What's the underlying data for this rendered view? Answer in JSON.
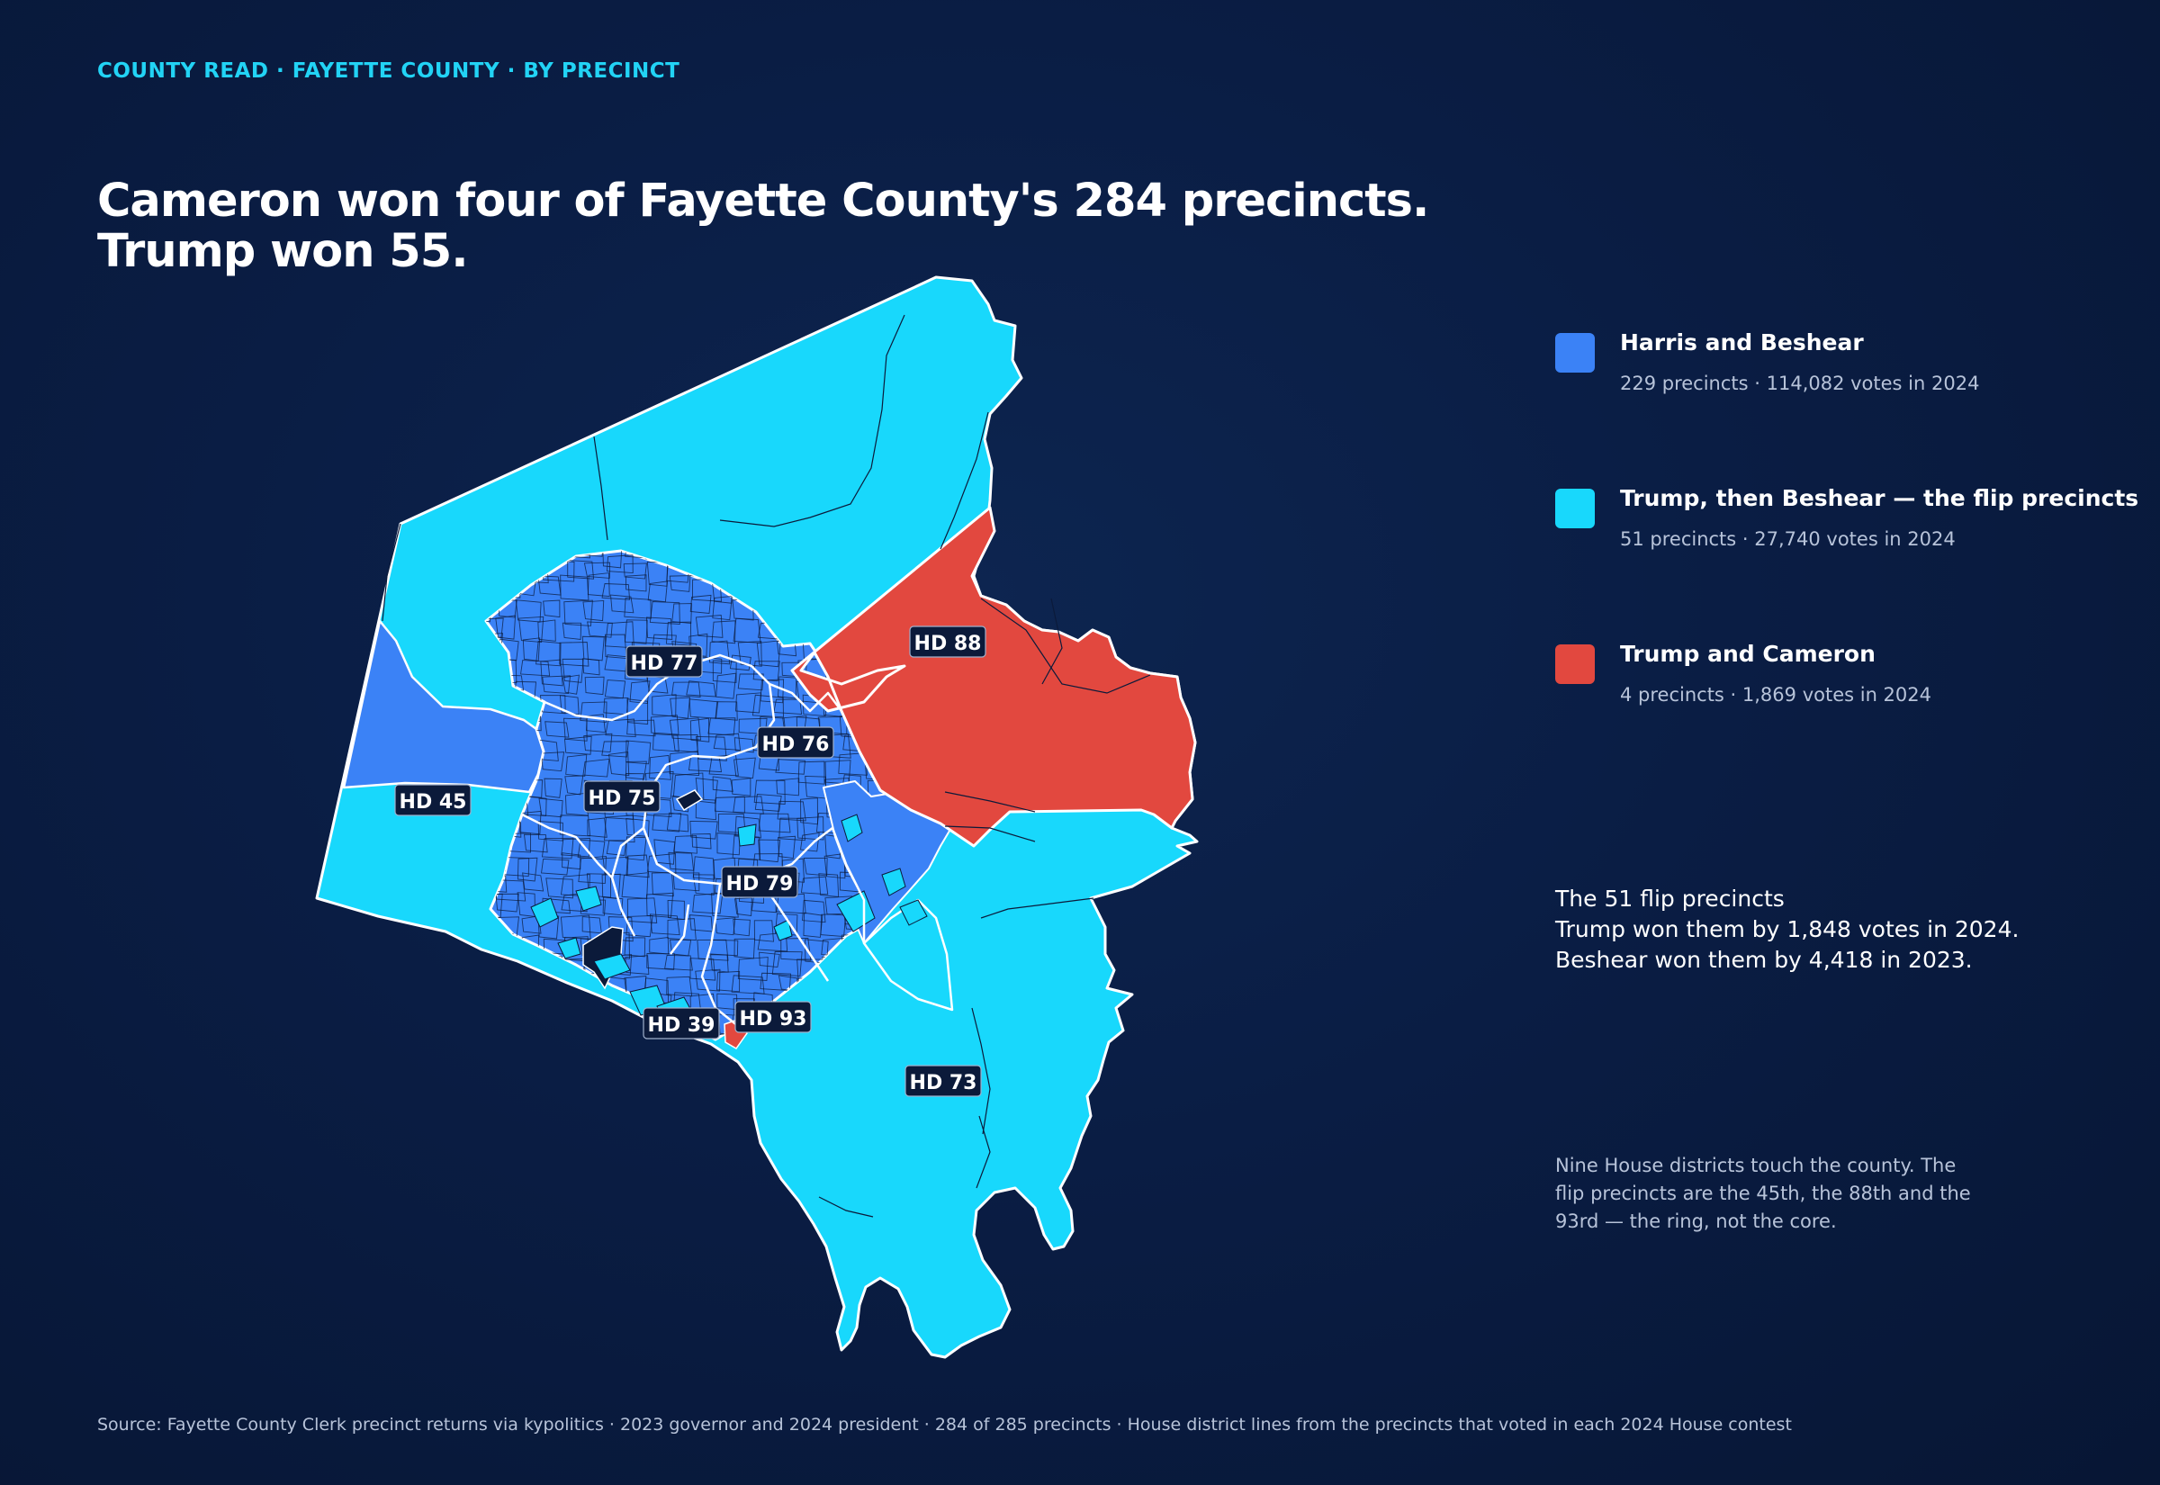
{
  "kicker": "COUNTY READ · FAYETTE COUNTY · BY PRECINCT",
  "headline": {
    "line1": "Cameron won four of Fayette County's 284 precincts.",
    "line2": "Trump won 55."
  },
  "colors": {
    "harris_beshear": "#3b82f6",
    "trump_beshear": "#18d8fc",
    "trump_cameron": "#e2483f",
    "no_data": "#0b1a3a",
    "background": "#0a1d44",
    "accent": "#22d3f5"
  },
  "legend": [
    {
      "label": "Harris and Beshear",
      "sub": "229 precincts · 114,082 votes in 2024",
      "color": "#3b82f6"
    },
    {
      "label": "Trump, then Beshear — the flip precincts",
      "sub": "51 precincts · 27,740 votes in 2024",
      "color": "#18d8fc"
    },
    {
      "label": "Trump and Cameron",
      "sub": "4 precincts · 1,869 votes in 2024",
      "color": "#e2483f"
    }
  ],
  "house_districts": [
    "HD 88",
    "HD 77",
    "HD 76",
    "HD 75",
    "HD 45",
    "HD 79",
    "HD 93",
    "HD 39",
    "HD 73"
  ],
  "callout": {
    "title": "The 51 flip precincts",
    "line1": "Trump won them by 1,848 votes in 2024.",
    "line2": "Beshear won them by 4,418 in 2023."
  },
  "note": "Nine House districts touch the county. The flip precincts are the 45th, the 88th and the 93rd — the ring, not the core.",
  "source": "Source: Fayette County Clerk precinct returns via kypolitics · 2023 governor and 2024 president · 284 of 285 precincts · House district lines from the precincts that voted in each 2024 House contest"
}
